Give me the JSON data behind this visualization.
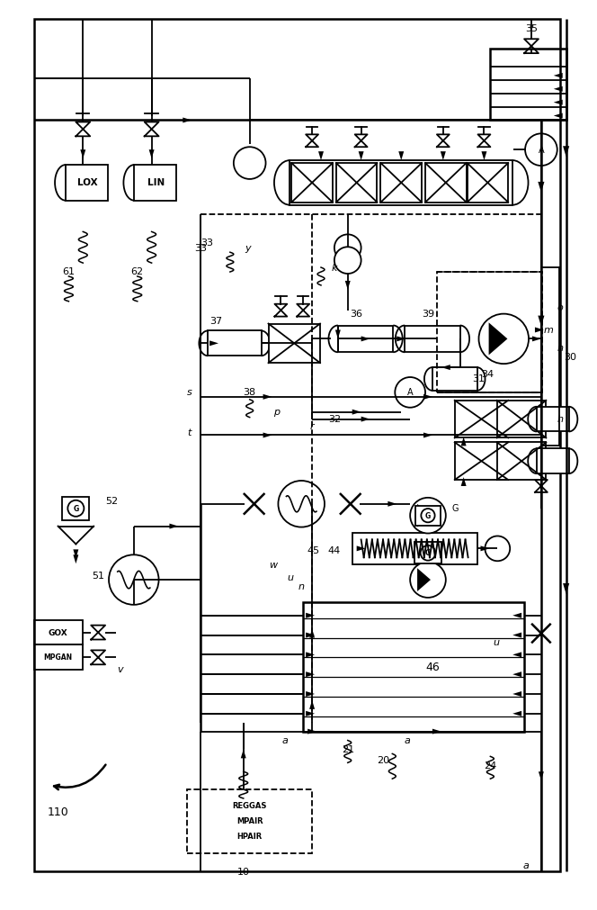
{
  "bg_color": "#ffffff",
  "lw": 1.3,
  "fig_w": 6.5,
  "fig_h": 10.0
}
